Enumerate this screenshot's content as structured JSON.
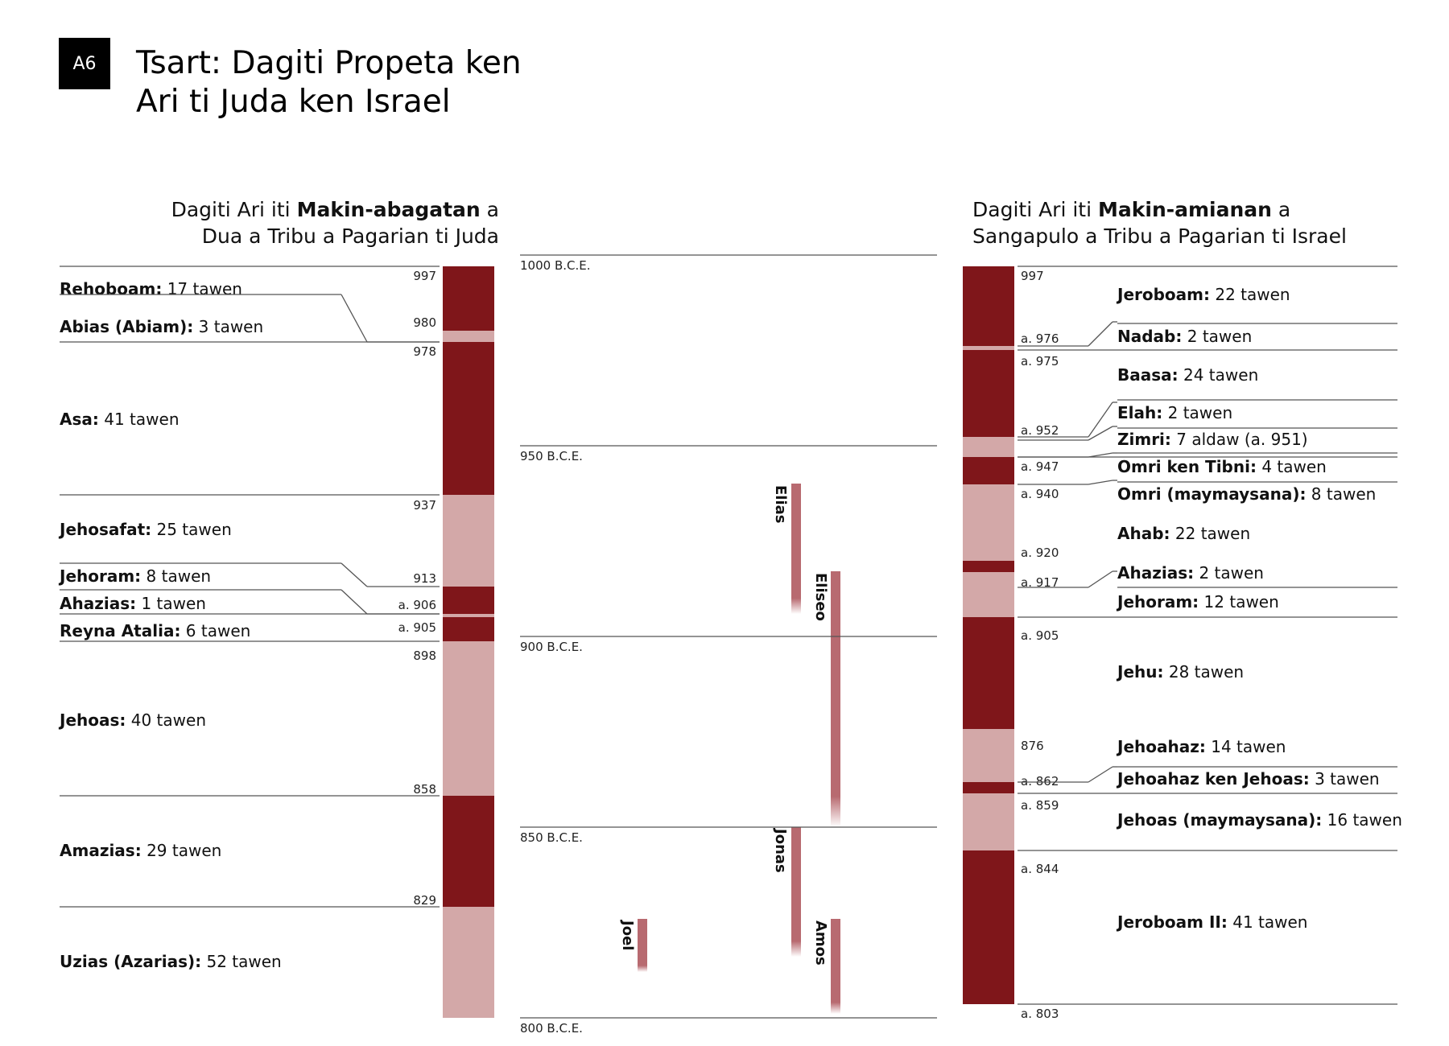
{
  "header": {
    "badge": "A6",
    "title_line1": "Tsart: Dagiti Propeta ken",
    "title_line2": "Ari ti Juda ken Israel"
  },
  "judah": {
    "heading_pre": "Dagiti Ari iti ",
    "heading_bold": "Makin-abagatan",
    "heading_post": " a",
    "heading_line2": "Dua a Tribu a Pagarian ti Juda",
    "kings": [
      {
        "name": "Rehoboam:",
        "reign": " 17 tawen",
        "year": "997",
        "shade": "dark"
      },
      {
        "name": "Abias (Abiam):",
        "reign": " 3 tawen",
        "year": "980",
        "shade": "light"
      },
      {
        "name": "Asa:",
        "reign": " 41 tawen",
        "year": "978",
        "shade": "dark"
      },
      {
        "name": "Jehosafat:",
        "reign": " 25 tawen",
        "year": "937",
        "shade": "light"
      },
      {
        "name": "Jehoram:",
        "reign": " 8 tawen",
        "year": "913",
        "shade": "dark"
      },
      {
        "name": "Ahazias:",
        "reign": " 1 tawen",
        "year": "a. 906",
        "shade": "light"
      },
      {
        "name": "Reyna Atalia:",
        "reign": " 6 tawen",
        "year": "a. 905",
        "shade": "dark"
      },
      {
        "name": "Jehoas:",
        "reign": " 40 tawen",
        "year": "898",
        "shade": "light"
      },
      {
        "name": "Amazias:",
        "reign": " 29 tawen",
        "year": "858",
        "shade": "dark"
      },
      {
        "name": "Uzias (Azarias):",
        "reign": " 52 tawen",
        "year": "829",
        "shade": "light"
      }
    ]
  },
  "israel": {
    "heading_pre": "Dagiti Ari iti ",
    "heading_bold": "Makin-amianan",
    "heading_post": " a",
    "heading_line2": "Sangapulo a Tribu a Pagarian ti Israel",
    "kings": [
      {
        "name": "Jeroboam:",
        "reign": " 22 tawen",
        "year": "997",
        "shade": "dark"
      },
      {
        "name": "Nadab:",
        "reign": " 2 tawen",
        "year": "a. 976",
        "shade": "light"
      },
      {
        "name": "Baasa:",
        "reign": " 24 tawen",
        "year": "a. 975",
        "shade": "dark"
      },
      {
        "name": "Elah:",
        "reign": " 2 tawen",
        "year": "a. 952",
        "shade": "light"
      },
      {
        "name": "Zimri:",
        "reign": " 7 aldaw (a. 951)",
        "year": "",
        "shade": "light"
      },
      {
        "name": "Omri ken Tibni:",
        "reign": " 4 tawen",
        "year": "a. 947",
        "shade": "dark"
      },
      {
        "name": "Omri (maymaysana):",
        "reign": " 8 tawen",
        "year": "a. 940",
        "shade": "light"
      },
      {
        "name": "Ahab:",
        "reign": " 22 tawen",
        "year": "a. 920",
        "shade": "dark"
      },
      {
        "name": "Ahazias:",
        "reign": " 2 tawen",
        "year": "a. 917",
        "shade": "light"
      },
      {
        "name": "Jehoram:",
        "reign": " 12 tawen",
        "year": "",
        "shade": "light"
      },
      {
        "name": "Jehu:",
        "reign": " 28 tawen",
        "year": "a. 905",
        "shade": "dark"
      },
      {
        "name": "Jehoahaz:",
        "reign": " 14 tawen",
        "year": "876",
        "shade": "light"
      },
      {
        "name": "Jehoahaz ken Jehoas:",
        "reign": " 3 tawen",
        "year": "a. 862",
        "shade": "dark"
      },
      {
        "name": "Jehoas (maymaysana):",
        "reign": " 16 tawen",
        "year": "a. 859",
        "shade": "light"
      },
      {
        "name": "Jeroboam II:",
        "reign": " 41 tawen",
        "year": "a. 844",
        "shade": "dark"
      }
    ],
    "end_year": "a. 803"
  },
  "timeline": {
    "eras": [
      "1000 B.C.E.",
      "950 B.C.E.",
      "900 B.C.E.",
      "850 B.C.E.",
      "800 B.C.E."
    ],
    "prophets": [
      {
        "name": "Elias",
        "start": 940,
        "end": 906
      },
      {
        "name": "Eliseo",
        "start": 917,
        "end": 850
      },
      {
        "name": "Jonas",
        "start": 850,
        "end": 816
      },
      {
        "name": "Joel",
        "start": 826,
        "end": 812
      },
      {
        "name": "Amos",
        "start": 826,
        "end": 801
      }
    ]
  },
  "colors": {
    "dark": "#7f161a",
    "light": "#d3a8a8",
    "prophet": "#b86a70"
  }
}
